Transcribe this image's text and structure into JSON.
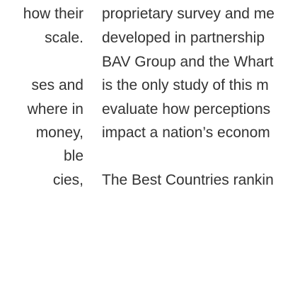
{
  "left_column": {
    "lines": [
      "how their",
      "scale.",
      "ses and",
      "where in",
      "money,",
      "ble",
      "cies,"
    ]
  },
  "right_column": {
    "lines": [
      "proprietary survey and me",
      "developed in partnership",
      "BAV Group and the Whart",
      "is the only study of this m",
      "evaluate how perceptions",
      "impact a nation’s econom",
      "The Best Countries rankin"
    ]
  }
}
